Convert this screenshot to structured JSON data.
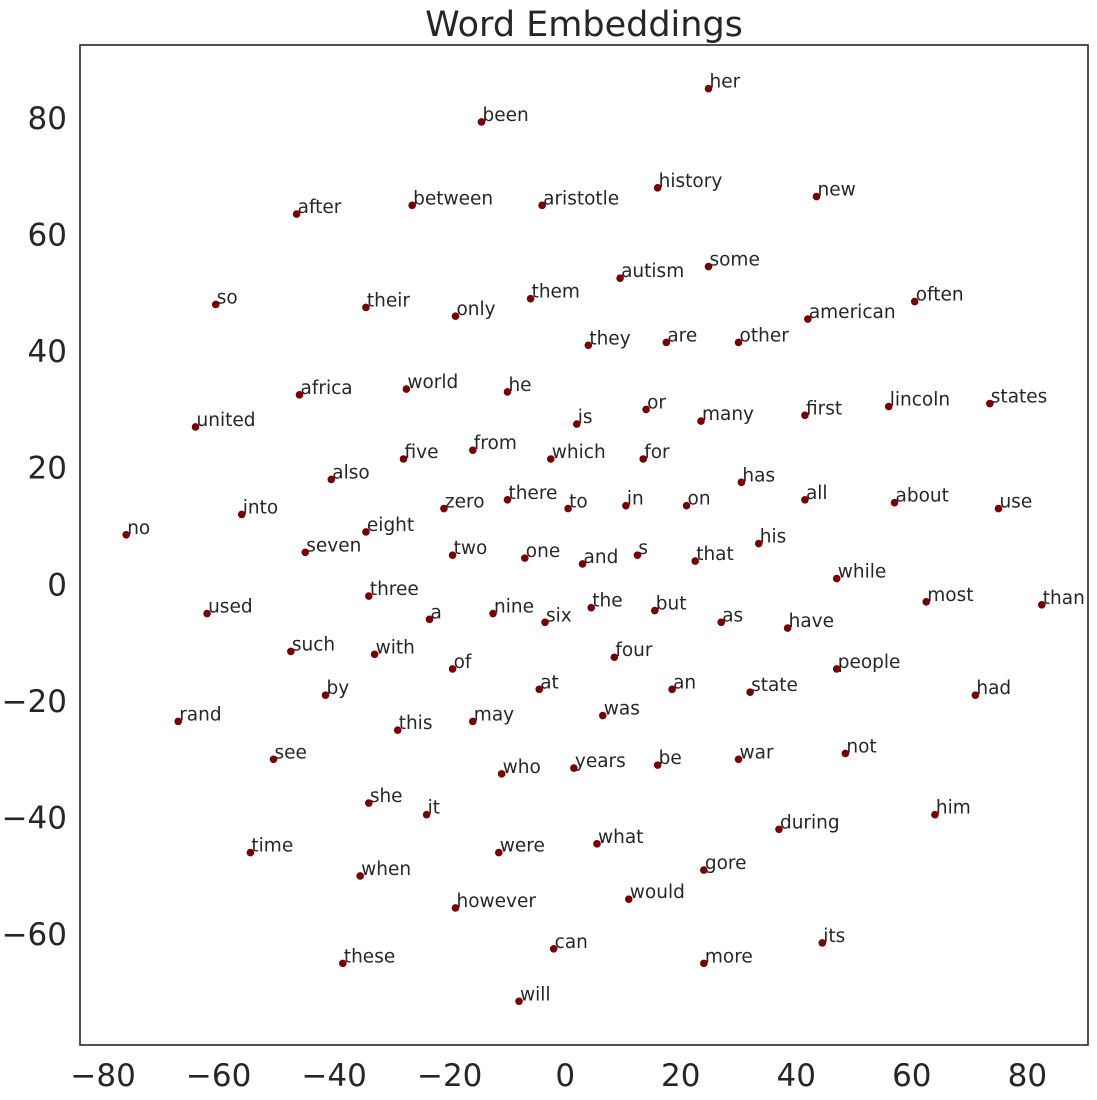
{
  "chart_data": {
    "type": "scatter",
    "title": "Word Embeddings",
    "xlabel": "",
    "ylabel": "",
    "xlim": [
      -84,
      90.5
    ],
    "ylim": [
      -79,
      92.5
    ],
    "xticks": [
      -80,
      -60,
      -40,
      -20,
      0,
      20,
      40,
      60,
      80
    ],
    "yticks": [
      -60,
      -40,
      -20,
      0,
      20,
      40,
      60,
      80
    ],
    "grid": false,
    "marker_color": "#7a0000",
    "points": [
      {
        "label": "her",
        "x": 24.8,
        "y": 85.0
      },
      {
        "label": "been",
        "x": -14.5,
        "y": 79.3
      },
      {
        "label": "history",
        "x": 16.0,
        "y": 68.0
      },
      {
        "label": "new",
        "x": 43.5,
        "y": 66.5
      },
      {
        "label": "after",
        "x": -46.5,
        "y": 63.5
      },
      {
        "label": "between",
        "x": -26.5,
        "y": 65.0
      },
      {
        "label": "aristotle",
        "x": -4.0,
        "y": 65.0
      },
      {
        "label": "some",
        "x": 24.8,
        "y": 54.5
      },
      {
        "label": "autism",
        "x": 9.5,
        "y": 52.5
      },
      {
        "label": "them",
        "x": -6.0,
        "y": 49.0
      },
      {
        "label": "often",
        "x": 60.5,
        "y": 48.5
      },
      {
        "label": "so",
        "x": -60.5,
        "y": 48.0
      },
      {
        "label": "their",
        "x": -34.5,
        "y": 47.5
      },
      {
        "label": "only",
        "x": -19.0,
        "y": 46.0
      },
      {
        "label": "american",
        "x": 42.0,
        "y": 45.5
      },
      {
        "label": "they",
        "x": 4.0,
        "y": 41.0
      },
      {
        "label": "are",
        "x": 17.5,
        "y": 41.5
      },
      {
        "label": "other",
        "x": 30.0,
        "y": 41.5
      },
      {
        "label": "africa",
        "x": -46.0,
        "y": 32.5
      },
      {
        "label": "world",
        "x": -27.5,
        "y": 33.5
      },
      {
        "label": "he",
        "x": -10.0,
        "y": 33.0
      },
      {
        "label": "lincoln",
        "x": 56.0,
        "y": 30.5
      },
      {
        "label": "states",
        "x": 73.5,
        "y": 31.0
      },
      {
        "label": "or",
        "x": 14.0,
        "y": 30.0
      },
      {
        "label": "first",
        "x": 41.5,
        "y": 29.0
      },
      {
        "label": "many",
        "x": 23.5,
        "y": 28.0
      },
      {
        "label": "is",
        "x": 2.0,
        "y": 27.5
      },
      {
        "label": "united",
        "x": -64.0,
        "y": 27.0
      },
      {
        "label": "from",
        "x": -16.0,
        "y": 23.0
      },
      {
        "label": "five",
        "x": -28.0,
        "y": 21.5
      },
      {
        "label": "which",
        "x": -2.5,
        "y": 21.5
      },
      {
        "label": "for",
        "x": 13.5,
        "y": 21.5
      },
      {
        "label": "has",
        "x": 30.5,
        "y": 17.5
      },
      {
        "label": "also",
        "x": -40.5,
        "y": 18.0
      },
      {
        "label": "all",
        "x": 41.5,
        "y": 14.5
      },
      {
        "label": "about",
        "x": 57.0,
        "y": 14.0
      },
      {
        "label": "there",
        "x": -10.0,
        "y": 14.5
      },
      {
        "label": "zero",
        "x": -21.0,
        "y": 13.0
      },
      {
        "label": "to",
        "x": 0.5,
        "y": 13.0
      },
      {
        "label": "in",
        "x": 10.5,
        "y": 13.5
      },
      {
        "label": "on",
        "x": 21.0,
        "y": 13.5
      },
      {
        "label": "use",
        "x": 75.0,
        "y": 13.0
      },
      {
        "label": "into",
        "x": -56.0,
        "y": 12.0
      },
      {
        "label": "eight",
        "x": -34.5,
        "y": 9.0
      },
      {
        "label": "no",
        "x": -76.0,
        "y": 8.5
      },
      {
        "label": "his",
        "x": 33.5,
        "y": 7.0
      },
      {
        "label": "seven",
        "x": -45.0,
        "y": 5.5
      },
      {
        "label": "two",
        "x": -19.5,
        "y": 5.0
      },
      {
        "label": "one",
        "x": -7.0,
        "y": 4.5
      },
      {
        "label": "s",
        "x": 12.5,
        "y": 5.0
      },
      {
        "label": "and",
        "x": 3.0,
        "y": 3.5
      },
      {
        "label": "that",
        "x": 22.5,
        "y": 4.0
      },
      {
        "label": "while",
        "x": 47.0,
        "y": 1.0
      },
      {
        "label": "three",
        "x": -34.0,
        "y": -2.0
      },
      {
        "label": "most",
        "x": 62.5,
        "y": -3.0
      },
      {
        "label": "than",
        "x": 82.5,
        "y": -3.5
      },
      {
        "label": "the",
        "x": 4.5,
        "y": -4.0
      },
      {
        "label": "but",
        "x": 15.5,
        "y": -4.5
      },
      {
        "label": "used",
        "x": -62.0,
        "y": -5.0
      },
      {
        "label": "nine",
        "x": -12.5,
        "y": -5.0
      },
      {
        "label": "six",
        "x": -3.5,
        "y": -6.5
      },
      {
        "label": "a",
        "x": -23.5,
        "y": -6.0
      },
      {
        "label": "as",
        "x": 27.0,
        "y": -6.5
      },
      {
        "label": "have",
        "x": 38.5,
        "y": -7.5
      },
      {
        "label": "such",
        "x": -47.5,
        "y": -11.5
      },
      {
        "label": "with",
        "x": -33.0,
        "y": -12.0
      },
      {
        "label": "four",
        "x": 8.5,
        "y": -12.5
      },
      {
        "label": "of",
        "x": -19.5,
        "y": -14.5
      },
      {
        "label": "people",
        "x": 47.0,
        "y": -14.5
      },
      {
        "label": "by",
        "x": -41.5,
        "y": -19.0
      },
      {
        "label": "at",
        "x": -4.5,
        "y": -18.0
      },
      {
        "label": "an",
        "x": 18.5,
        "y": -18.0
      },
      {
        "label": "state",
        "x": 32.0,
        "y": -18.5
      },
      {
        "label": "had",
        "x": 71.0,
        "y": -19.0
      },
      {
        "label": "rand",
        "x": -67.0,
        "y": -23.5
      },
      {
        "label": "may",
        "x": -16.0,
        "y": -23.5
      },
      {
        "label": "was",
        "x": 6.5,
        "y": -22.5
      },
      {
        "label": "this",
        "x": -29.0,
        "y": -25.0
      },
      {
        "label": "see",
        "x": -50.5,
        "y": -30.0
      },
      {
        "label": "not",
        "x": 48.5,
        "y": -29.0
      },
      {
        "label": "war",
        "x": 30.0,
        "y": -30.0
      },
      {
        "label": "be",
        "x": 16.0,
        "y": -31.0
      },
      {
        "label": "years",
        "x": 1.5,
        "y": -31.5
      },
      {
        "label": "who",
        "x": -11.0,
        "y": -32.5
      },
      {
        "label": "she",
        "x": -34.0,
        "y": -37.5
      },
      {
        "label": "it",
        "x": -24.0,
        "y": -39.5
      },
      {
        "label": "him",
        "x": 64.0,
        "y": -39.5
      },
      {
        "label": "during",
        "x": 37.0,
        "y": -42.0
      },
      {
        "label": "what",
        "x": 5.5,
        "y": -44.5
      },
      {
        "label": "were",
        "x": -11.5,
        "y": -46.0
      },
      {
        "label": "time",
        "x": -54.5,
        "y": -46.0
      },
      {
        "label": "gore",
        "x": 24.0,
        "y": -49.0
      },
      {
        "label": "when",
        "x": -35.5,
        "y": -50.0
      },
      {
        "label": "would",
        "x": 11.0,
        "y": -54.0
      },
      {
        "label": "however",
        "x": -19.0,
        "y": -55.5
      },
      {
        "label": "its",
        "x": 44.5,
        "y": -61.5
      },
      {
        "label": "can",
        "x": -2.0,
        "y": -62.5
      },
      {
        "label": "more",
        "x": 24.0,
        "y": -65.0
      },
      {
        "label": "these",
        "x": -38.5,
        "y": -65.0
      },
      {
        "label": "will",
        "x": -8.0,
        "y": -71.5
      }
    ]
  }
}
